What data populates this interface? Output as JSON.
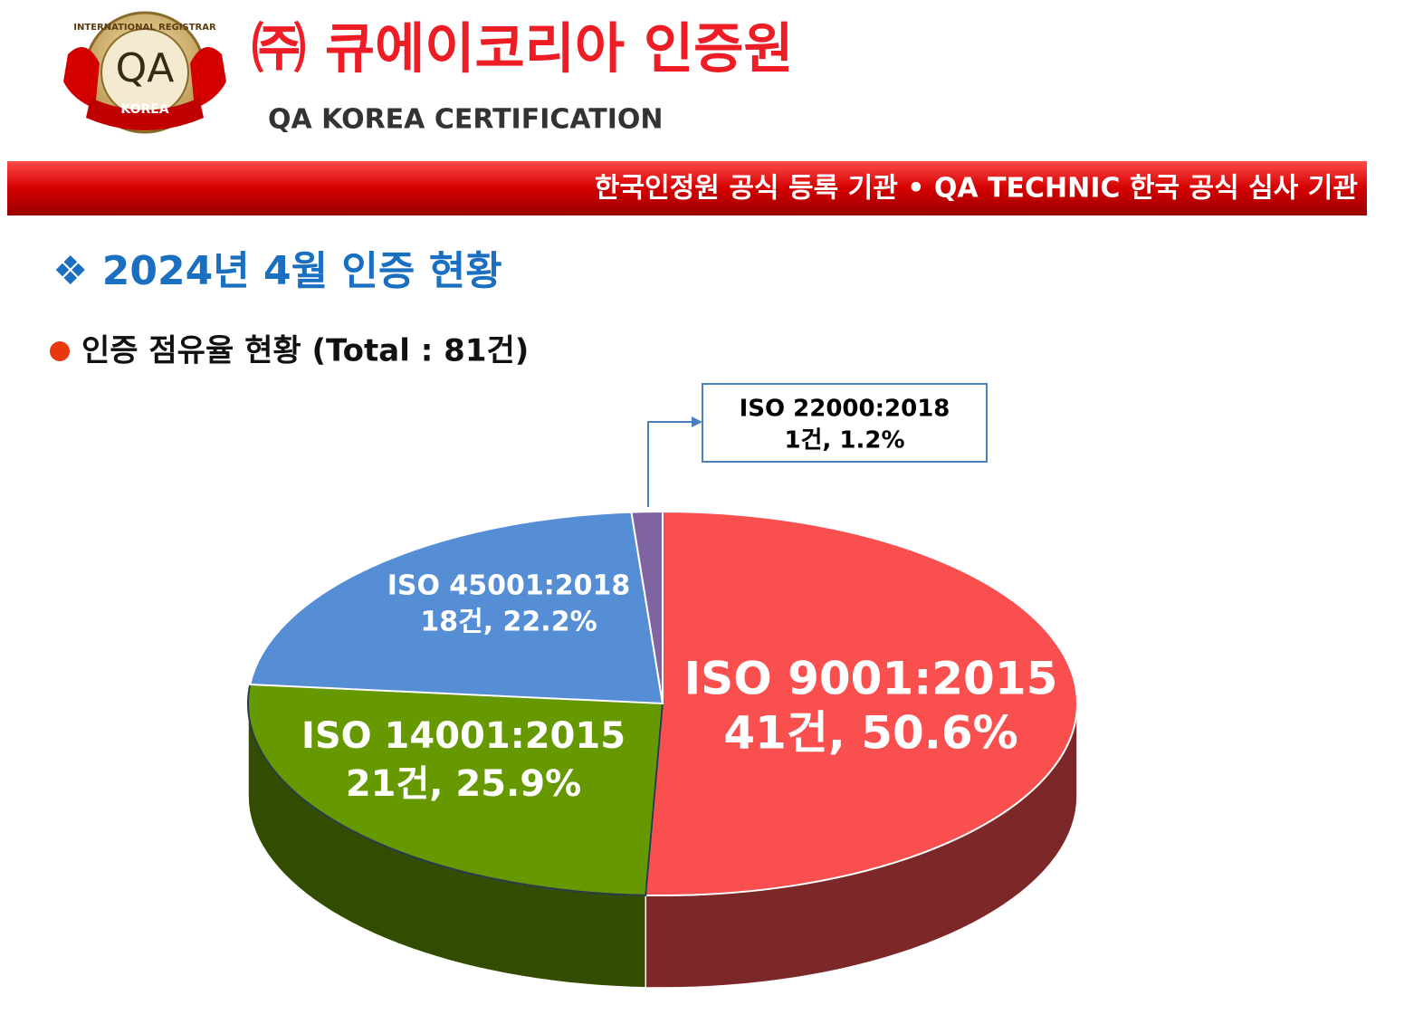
{
  "header": {
    "logo": {
      "ring_text": "INTERNATIONAL REGISTRAR",
      "mark": "QA",
      "banner": "KOREA"
    },
    "title": "㈜ 큐에이코리아 인증원",
    "subtitle": "QA KOREA CERTIFICATION",
    "ribbon": "한국인정원 공식 등록 기관  •  QA TECHNIC 한국 공식 심사 기관"
  },
  "section_title": "❖ 2024년 4월 인증 현황",
  "chart_data": {
    "type": "pie",
    "title": "인증 점유율 현황 (Total : 81건)",
    "categories": [
      "ISO 9001:2015",
      "ISO 14001:2015",
      "ISO 45001:2018",
      "ISO 22000:2018"
    ],
    "values": [
      50.6,
      25.9,
      22.2,
      1.2
    ],
    "value_labels": [
      "41건, 50.6%",
      "21건, 25.9%",
      "18건, 22.2%",
      "1건, 1.2%"
    ],
    "colors": [
      "#f94f4f",
      "#669900",
      "#558ed5",
      "#8064a2"
    ]
  }
}
